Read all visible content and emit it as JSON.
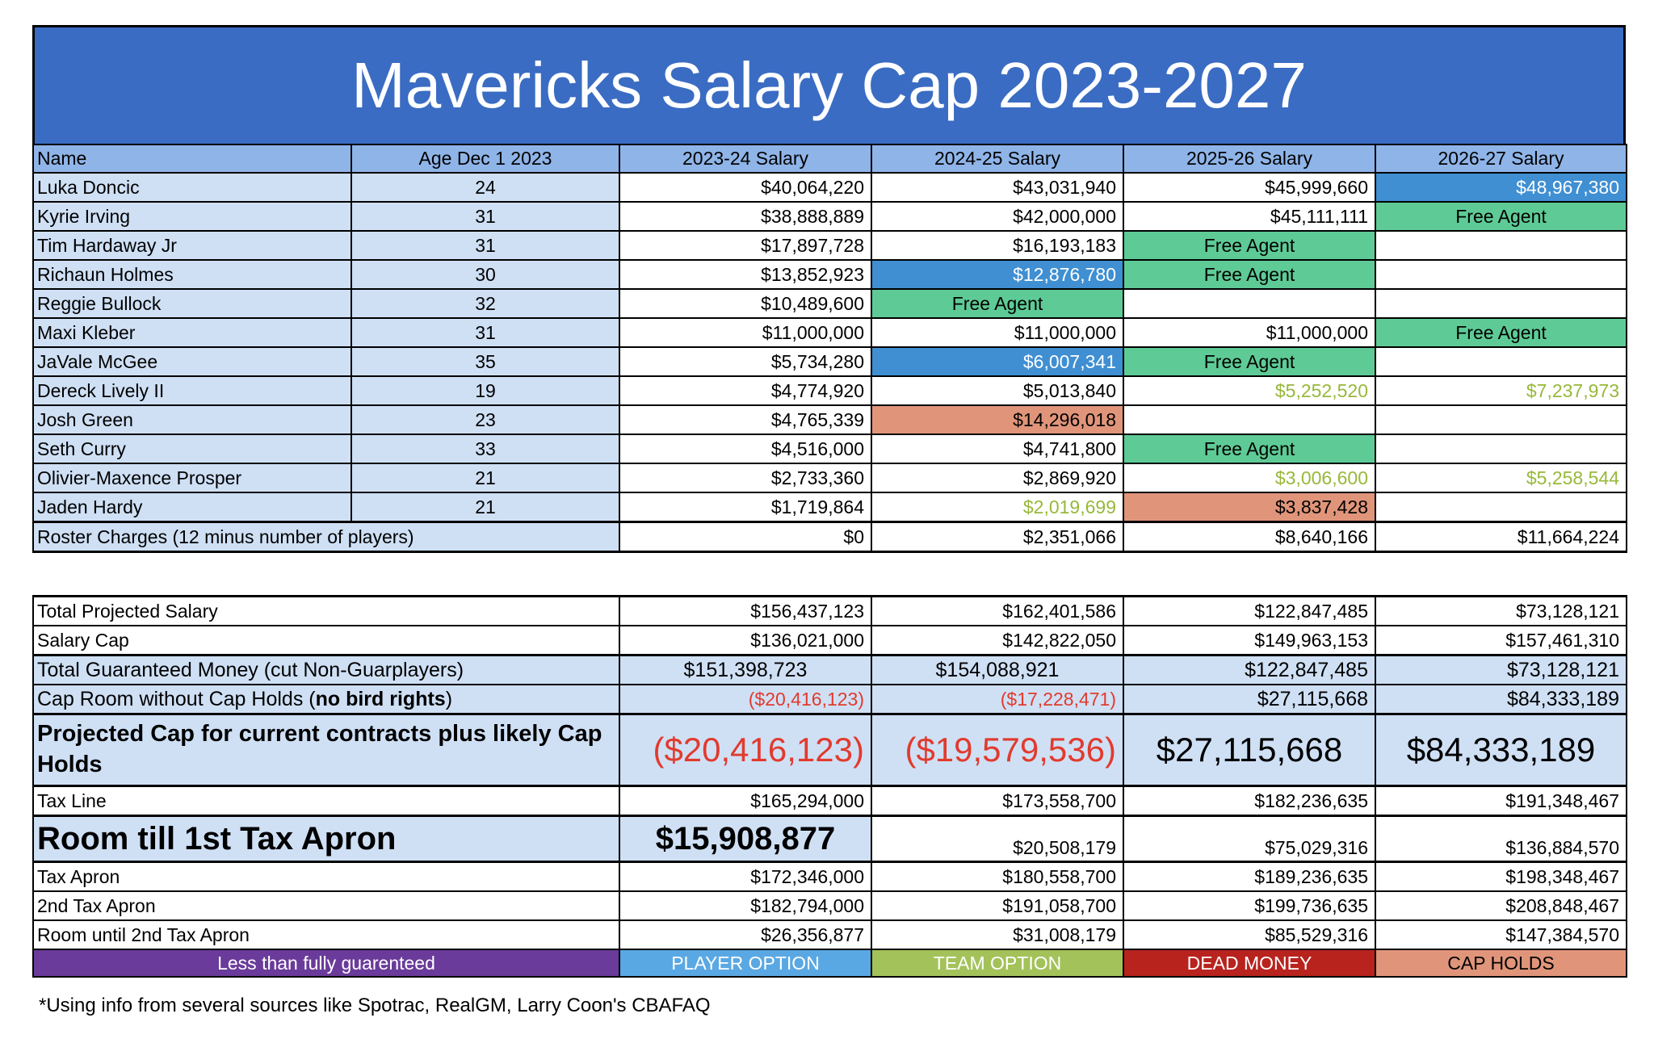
{
  "title": "Mavericks Salary Cap 2023-2027",
  "headers": [
    "Name",
    "Age Dec 1 2023",
    "2023-24 Salary",
    "2024-25 Salary",
    "2025-26 Salary",
    "2026-27 Salary"
  ],
  "players": [
    {
      "name": "Luka Doncic",
      "age": "24",
      "s": [
        "$40,064,220",
        "$43,031,940",
        "$45,999,660",
        "$48,967,380"
      ],
      "t": [
        "",
        "",
        "",
        "po"
      ]
    },
    {
      "name": "Kyrie Irving",
      "age": "31",
      "s": [
        "$38,888,889",
        "$42,000,000",
        "$45,111,111",
        "Free Agent"
      ],
      "t": [
        "",
        "",
        "",
        "fa"
      ]
    },
    {
      "name": "Tim Hardaway Jr",
      "age": "31",
      "s": [
        "$17,897,728",
        "$16,193,183",
        "Free Agent",
        ""
      ],
      "t": [
        "",
        "",
        "fa",
        ""
      ]
    },
    {
      "name": "Richaun Holmes",
      "age": "30",
      "s": [
        "$13,852,923",
        "$12,876,780",
        "Free Agent",
        ""
      ],
      "t": [
        "",
        "po",
        "fa",
        ""
      ]
    },
    {
      "name": "Reggie Bullock",
      "age": "32",
      "s": [
        "$10,489,600",
        "Free Agent",
        "",
        ""
      ],
      "t": [
        "",
        "fa",
        "",
        ""
      ]
    },
    {
      "name": "Maxi Kleber",
      "age": "31",
      "s": [
        "$11,000,000",
        "$11,000,000",
        "$11,000,000",
        "Free Agent"
      ],
      "t": [
        "",
        "",
        "",
        "fa"
      ]
    },
    {
      "name": "JaVale McGee",
      "age": "35",
      "s": [
        "$5,734,280",
        "$6,007,341",
        "Free Agent",
        ""
      ],
      "t": [
        "",
        "po",
        "fa",
        ""
      ]
    },
    {
      "name": "Dereck Lively II",
      "age": "19",
      "s": [
        "$4,774,920",
        "$5,013,840",
        "$5,252,520",
        "$7,237,973"
      ],
      "t": [
        "",
        "",
        "to",
        "to"
      ]
    },
    {
      "name": "Josh Green",
      "age": "23",
      "s": [
        "$4,765,339",
        "$14,296,018",
        "",
        ""
      ],
      "t": [
        "",
        "cap",
        "",
        ""
      ]
    },
    {
      "name": "Seth Curry",
      "age": "33",
      "s": [
        "$4,516,000",
        "$4,741,800",
        "Free Agent",
        ""
      ],
      "t": [
        "",
        "",
        "fa",
        ""
      ]
    },
    {
      "name": "Olivier-Maxence Prosper",
      "age": "21",
      "s": [
        "$2,733,360",
        "$2,869,920",
        "$3,006,600",
        "$5,258,544"
      ],
      "t": [
        "",
        "",
        "to",
        "to"
      ]
    },
    {
      "name": "Jaden Hardy",
      "age": "21",
      "s": [
        "$1,719,864",
        "$2,019,699",
        "$3,837,428",
        ""
      ],
      "t": [
        "",
        "to",
        "cap",
        ""
      ]
    }
  ],
  "roster_charges": {
    "label": "Roster Charges (12 minus number of players)",
    "v": [
      "$0",
      "$2,351,066",
      "$8,640,166",
      "$11,664,224"
    ]
  },
  "summary": {
    "total_projected": {
      "label": "Total Projected Salary",
      "v": [
        "$156,437,123",
        "$162,401,586",
        "$122,847,485",
        "$73,128,121"
      ]
    },
    "salary_cap": {
      "label": "Salary Cap",
      "v": [
        "$136,021,000",
        "$142,822,050",
        "$149,963,153",
        "$157,461,310"
      ]
    },
    "guaranteed": {
      "label": "Total Guaranteed Money (cut Non-Guarplayers)",
      "v": [
        "$151,398,723",
        "$154,088,921",
        "$122,847,485",
        "$73,128,121"
      ]
    },
    "cap_room": {
      "label_a": "Cap Room without Cap Holds (",
      "label_b": "no bird rights",
      ")": "",
      "label_c": ")",
      "v": [
        "($20,416,123)",
        "($17,228,471)",
        "$27,115,668",
        "$84,333,189"
      ]
    },
    "projected_cap": {
      "label": "Projected Cap for current contracts plus likely Cap Holds",
      "v": [
        "($20,416,123)",
        "($19,579,536)",
        "$27,115,668",
        "$84,333,189"
      ]
    },
    "tax_line": {
      "label": "Tax Line",
      "v": [
        "$165,294,000",
        "$173,558,700",
        "$182,236,635",
        "$191,348,467"
      ]
    },
    "room_apron1": {
      "label": "Room till 1st Tax Apron",
      "v": [
        "$15,908,877",
        "$20,508,179",
        "$75,029,316",
        "$136,884,570"
      ]
    },
    "tax_apron": {
      "label": "Tax Apron",
      "v": [
        "$172,346,000",
        "$180,558,700",
        "$189,236,635",
        "$198,348,467"
      ]
    },
    "apron2": {
      "label": "2nd Tax Apron",
      "v": [
        "$182,794,000",
        "$191,058,700",
        "$199,736,635",
        "$208,848,467"
      ]
    },
    "room_apron2": {
      "label": "Room until 2nd Tax Apron",
      "v": [
        "$26,356,877",
        "$31,008,179",
        "$85,529,316",
        "$147,384,570"
      ]
    }
  },
  "legend": [
    "Less than fully guarenteed",
    "PLAYER OPTION",
    "TEAM OPTION",
    "DEAD MONEY",
    "CAP HOLDS"
  ],
  "colors": {
    "header": "#3a6cc3",
    "free_agent": "#5ecb96",
    "player_option": "#3f8fd2",
    "cap_hold": "#e0957a",
    "team_option_text": "#98b83a",
    "negative": "#e23a2d"
  },
  "footnote": "*Using info from several sources like Spotrac, RealGM, Larry Coon's CBAFAQ"
}
